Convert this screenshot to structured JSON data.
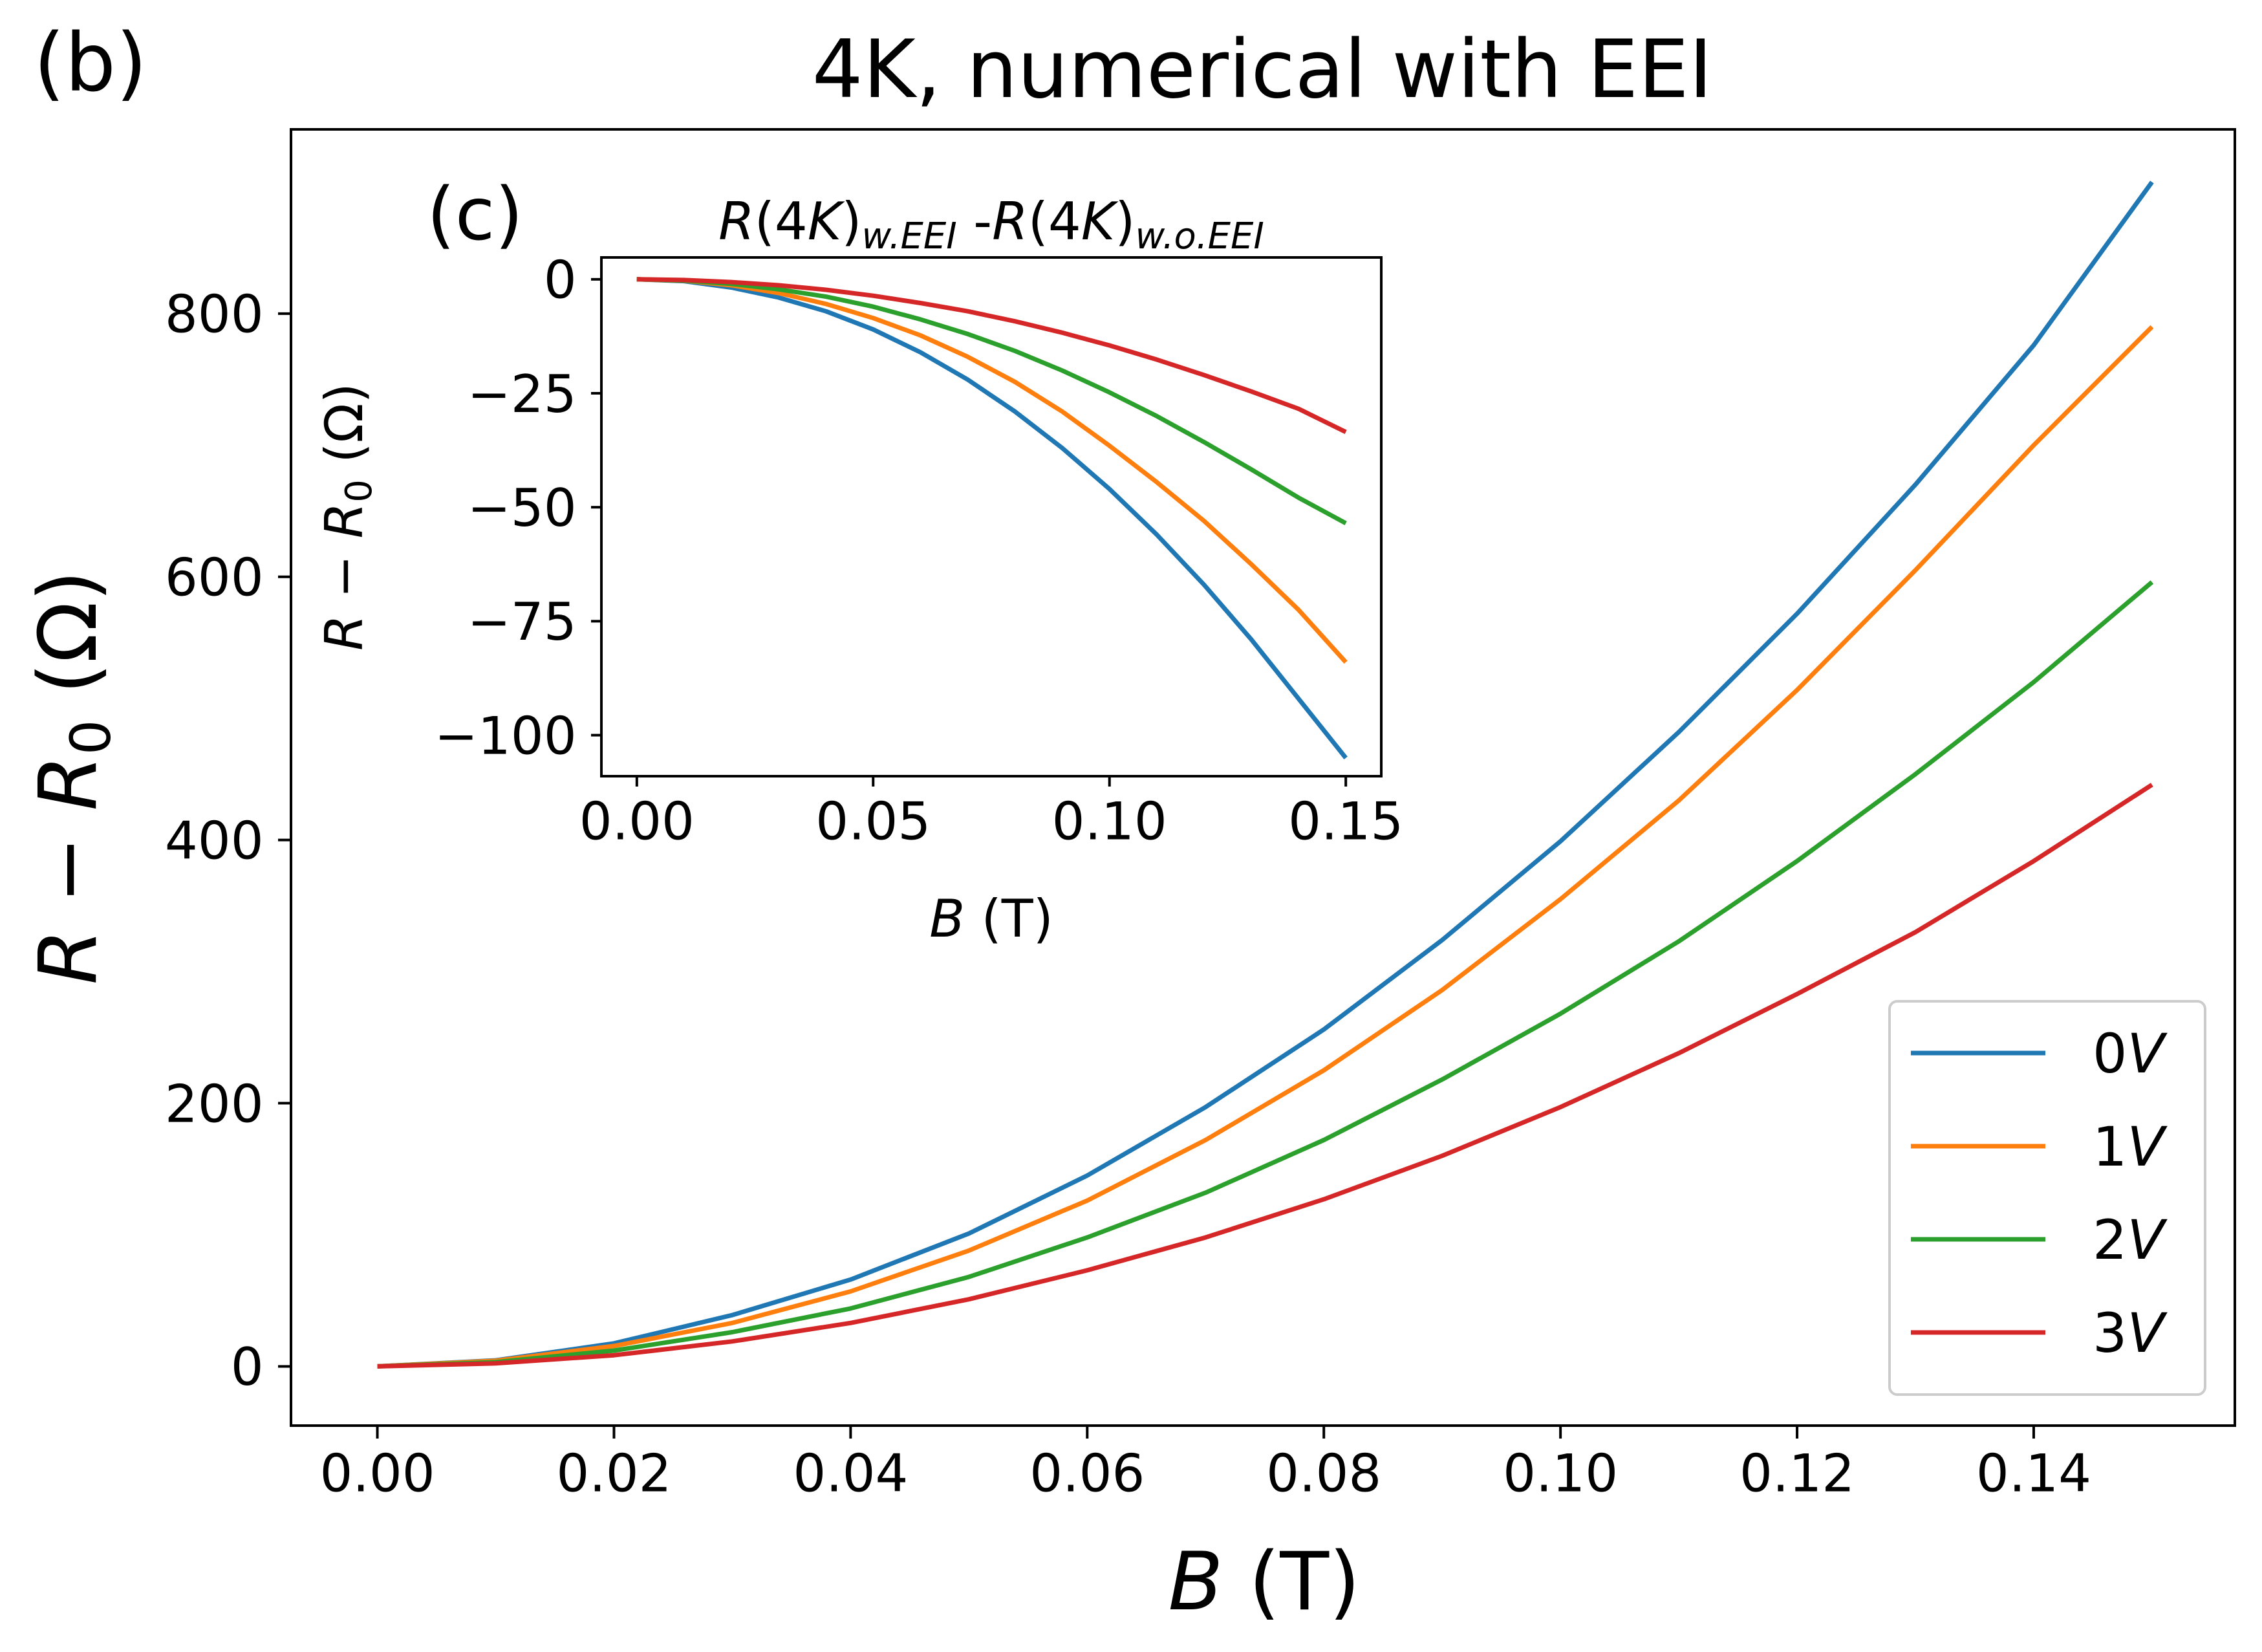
{
  "panel_labels": {
    "main": "(b)",
    "inset": "(c)"
  },
  "colors": {
    "0V": "#1f77b4",
    "1V": "#ff7f0e",
    "2V": "#2ca02c",
    "3V": "#d62728"
  },
  "chart_data": [
    {
      "type": "line",
      "title": "4K, numerical with EEI",
      "xlabel": {
        "var": "B",
        "unit": " (T)"
      },
      "ylabel": {
        "var1": "R",
        "sep": " − ",
        "var2": "R",
        "sub": "0",
        "unit": " (Ω)"
      },
      "xlim": [
        -0.0073,
        0.157
      ],
      "ylim": [
        -45,
        940
      ],
      "xticks": [
        0.0,
        0.02,
        0.04,
        0.06,
        0.08,
        0.1,
        0.12,
        0.14
      ],
      "xtick_labels": [
        "0.00",
        "0.02",
        "0.04",
        "0.06",
        "0.08",
        "0.10",
        "0.12",
        "0.14"
      ],
      "yticks": [
        0,
        200,
        400,
        600,
        800
      ],
      "ytick_labels": [
        "0",
        "200",
        "400",
        "600",
        "800"
      ],
      "grid": false,
      "legend_position": "bottom-right",
      "series": [
        {
          "key": "0V",
          "name": "0V",
          "num": "0",
          "unit": "V",
          "x": [
            0,
            0.01,
            0.02,
            0.03,
            0.04,
            0.05,
            0.06,
            0.07,
            0.08,
            0.09,
            0.1,
            0.11,
            0.12,
            0.13,
            0.14,
            0.15
          ],
          "y": [
            0,
            4.6,
            17.5,
            39,
            66,
            101,
            145,
            197,
            256,
            324,
            399,
            482,
            572,
            670,
            776,
            900
          ]
        },
        {
          "key": "1V",
          "name": "1V",
          "num": "1",
          "unit": "V",
          "x": [
            0,
            0.01,
            0.02,
            0.03,
            0.04,
            0.05,
            0.06,
            0.07,
            0.08,
            0.09,
            0.1,
            0.11,
            0.12,
            0.13,
            0.14,
            0.15
          ],
          "y": [
            0,
            4.3,
            15.5,
            33,
            57,
            88,
            126,
            172,
            225,
            286,
            355,
            430,
            514,
            605,
            700,
            790
          ]
        },
        {
          "key": "2V",
          "name": "2V",
          "num": "2",
          "unit": "V",
          "x": [
            0,
            0.01,
            0.02,
            0.03,
            0.04,
            0.05,
            0.06,
            0.07,
            0.08,
            0.09,
            0.1,
            0.11,
            0.12,
            0.13,
            0.14,
            0.15
          ],
          "y": [
            0,
            3.2,
            12,
            26,
            44,
            68,
            98,
            132,
            172,
            218,
            268,
            323,
            384,
            450,
            520,
            596
          ]
        },
        {
          "key": "3V",
          "name": "3V",
          "num": "3",
          "unit": "V",
          "x": [
            0,
            0.01,
            0.02,
            0.03,
            0.04,
            0.05,
            0.06,
            0.07,
            0.08,
            0.09,
            0.1,
            0.11,
            0.12,
            0.13,
            0.14,
            0.15
          ],
          "y": [
            0,
            2.3,
            8.5,
            19,
            33,
            51,
            73,
            98,
            127,
            160,
            197,
            238,
            283,
            330,
            384,
            442
          ]
        }
      ]
    },
    {
      "type": "line",
      "title": {
        "a_var": "R",
        "a_paren": "(4",
        "a_K": "K",
        "a_close": ")",
        "a_sub": "w.EEI",
        "mid": " -",
        "b_var": "R",
        "b_paren": "(4",
        "b_K": "K",
        "b_close": ")",
        "b_sub": "w.o.EEI"
      },
      "xlabel": {
        "var": "B",
        "unit": " (T)"
      },
      "ylabel": {
        "var1": "R",
        "sep": " − ",
        "var2": "R",
        "sub": "0",
        "unit": " (Ω)"
      },
      "xlim": [
        -0.0075,
        0.1575
      ],
      "ylim": [
        -109,
        4.8
      ],
      "xticks": [
        0.0,
        0.05,
        0.1,
        0.15
      ],
      "xtick_labels": [
        "0.00",
        "0.05",
        "0.10",
        "0.15"
      ],
      "yticks": [
        0,
        -25,
        -50,
        -75,
        -100
      ],
      "ytick_labels": [
        "0",
        "−25",
        "−50",
        "−75",
        "−100"
      ],
      "grid": false,
      "series": [
        {
          "key": "0V",
          "x": [
            0,
            0.01,
            0.02,
            0.03,
            0.04,
            0.05,
            0.06,
            0.07,
            0.08,
            0.09,
            0.1,
            0.11,
            0.12,
            0.13,
            0.14,
            0.15
          ],
          "y": [
            0,
            -0.4,
            -1.8,
            -4.0,
            -7.0,
            -11.0,
            -16.0,
            -22.0,
            -29.0,
            -37.0,
            -46.0,
            -56.0,
            -67.0,
            -79.0,
            -92.0,
            -105.0
          ]
        },
        {
          "key": "1V",
          "x": [
            0,
            0.01,
            0.02,
            0.03,
            0.04,
            0.05,
            0.06,
            0.07,
            0.08,
            0.09,
            0.1,
            0.11,
            0.12,
            0.13,
            0.14,
            0.15
          ],
          "y": [
            0,
            -0.3,
            -1.3,
            -3.0,
            -5.4,
            -8.5,
            -12.3,
            -17.0,
            -22.5,
            -29.0,
            -36.5,
            -44.5,
            -53.0,
            -62.5,
            -72.5,
            -84.0
          ]
        },
        {
          "key": "2V",
          "x": [
            0,
            0.01,
            0.02,
            0.03,
            0.04,
            0.05,
            0.06,
            0.07,
            0.08,
            0.09,
            0.1,
            0.11,
            0.12,
            0.13,
            0.14,
            0.15
          ],
          "y": [
            0,
            -0.25,
            -1.0,
            -2.2,
            -3.8,
            -6.0,
            -8.8,
            -12.0,
            -15.7,
            -20.0,
            -24.8,
            -30.0,
            -35.7,
            -41.7,
            -47.9,
            -53.5
          ]
        },
        {
          "key": "3V",
          "x": [
            0,
            0.01,
            0.02,
            0.03,
            0.04,
            0.05,
            0.06,
            0.07,
            0.08,
            0.09,
            0.1,
            0.11,
            0.12,
            0.13,
            0.14,
            0.15
          ],
          "y": [
            0,
            -0.15,
            -0.6,
            -1.3,
            -2.3,
            -3.6,
            -5.2,
            -7.0,
            -9.2,
            -11.7,
            -14.5,
            -17.6,
            -21.0,
            -24.6,
            -28.4,
            -33.5
          ]
        }
      ]
    }
  ]
}
